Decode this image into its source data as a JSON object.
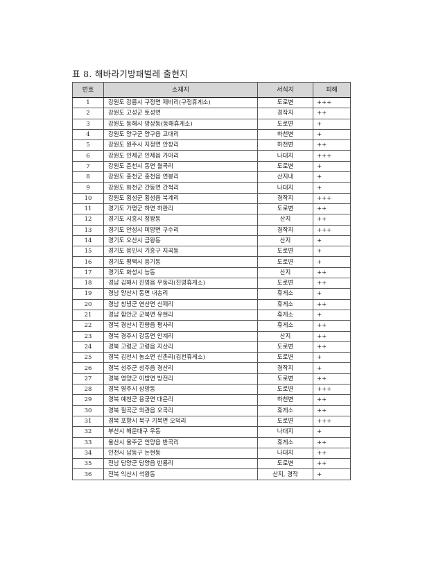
{
  "title": "표 8. 해바라기방패벌레 출현지",
  "table": {
    "headers": [
      "번호",
      "소재지",
      "서식지",
      "피해"
    ],
    "rows": [
      [
        "1",
        "강원도 강릉시  구정면 제비리(구정휴게소)",
        "도로변",
        "+++"
      ],
      [
        "2",
        "강원도 고성군 토성면",
        "경작지",
        "++"
      ],
      [
        "3",
        "강원도 동해시 망상동(동해휴게소)",
        "도로변",
        "+"
      ],
      [
        "4",
        "강원도 양구군 양구읍 고대리",
        "하천변",
        "+"
      ],
      [
        "5",
        "강원도 원주시 지정면 안창리",
        "하천변",
        "++"
      ],
      [
        "6",
        "강원도 인제군 인제읍 가아리",
        "나대지",
        "+++"
      ],
      [
        "7",
        "강원도 춘천시 동면 월곡리",
        "도로변",
        "+"
      ],
      [
        "8",
        "강원도 홍천군 홍천읍 연봉리",
        "산지내",
        "+"
      ],
      [
        "9",
        "강원도 화천군 간동면 간척리",
        "나대지",
        "+"
      ],
      [
        "10",
        "강원도 횡성군 횡성읍 북계리",
        "경작지",
        "+++"
      ],
      [
        "11",
        "경기도 가평군 하면 하판리",
        "도로변",
        "++"
      ],
      [
        "12",
        "경기도 시흥시 정왕동",
        "산지",
        "++"
      ],
      [
        "13",
        "경기도 안성시 미양면 구수리",
        "경작지",
        "+++"
      ],
      [
        "14",
        "경기도 오산시 금왕동",
        "산지",
        "+"
      ],
      [
        "15",
        "경기도 용인시 기흥구 지곡동",
        "도로변",
        "+"
      ],
      [
        "16",
        "경기도 평택시 용기동",
        "도로변",
        "+"
      ],
      [
        "17",
        "경기도 화성시 능동",
        "산지",
        "++"
      ],
      [
        "18",
        "경남 김해시 진영읍 우동리(진영휴게소)",
        "도로변",
        "++"
      ],
      [
        "19",
        "경남 양산시 동면 내송리",
        "휴게소",
        "+"
      ],
      [
        "20",
        "경남 창녕군 연산면 신제리",
        "휴게소",
        "++"
      ],
      [
        "21",
        "경남 함안군 군북면 유현리",
        "휴게소",
        "+"
      ],
      [
        "22",
        "경북 경산시 진량읍 평사리",
        "휴게소",
        "++"
      ],
      [
        "23",
        "경북 경주시 강동면 안계리",
        "산지",
        "++"
      ],
      [
        "24",
        "경북 고령군 고령읍 지산리",
        "도로변",
        "++"
      ],
      [
        "25",
        "경북 김천시 농소면 신촌리(김천휴게소)",
        "도로변",
        "+"
      ],
      [
        "26",
        "경북 성주군 성주읍 경산리",
        "경작지",
        "+"
      ],
      [
        "27",
        "경북 영양군 이밤면 방전리",
        "도로변",
        "++"
      ],
      [
        "28",
        "경북 영주시 상망동",
        "도로변",
        "+++"
      ],
      [
        "29",
        "경북 예천군 용궁면 대은리",
        "하천변",
        "++"
      ],
      [
        "30",
        "경북 칠곡군 외관읍 오곡리",
        "휴게소",
        "++"
      ],
      [
        "31",
        "경북 포항시 북구 기북면 오덕리",
        "도로변",
        "+++"
      ],
      [
        "32",
        "부산시 해운대구 우동",
        "나대지",
        "+"
      ],
      [
        "33",
        "울산시 울주군 언양읍 반곡리",
        "휴게소",
        "++"
      ],
      [
        "34",
        "인천시 남동구 논현동",
        "나대지",
        "++"
      ],
      [
        "35",
        "전남 담양군 담양읍 반룡리",
        "도로변",
        "++"
      ],
      [
        "36",
        "전북 익산시 석왕동",
        "산지, 경작",
        "+"
      ]
    ]
  }
}
